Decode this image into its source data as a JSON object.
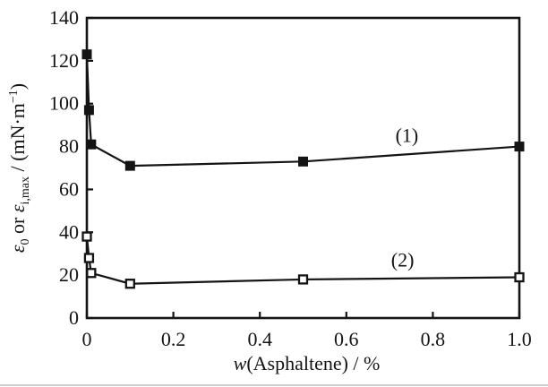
{
  "figure": {
    "background": "#ffffff",
    "ink": "#141414",
    "artifact_color": "#c6c6c6"
  },
  "chart_data": {
    "type": "line",
    "title": "",
    "xlabel": "w(Asphaltene) / %",
    "ylabel": "e0 or ei,max / (mN·m-1)",
    "xlabel_parts": [
      {
        "text": "w",
        "italic": true
      },
      {
        "text": "(Asphaltene) / %"
      }
    ],
    "ylabel_parts": [
      {
        "text": "ε",
        "italic": true
      },
      {
        "text": "0",
        "script": "sub"
      },
      {
        "text": " or "
      },
      {
        "text": "ε",
        "italic": true
      },
      {
        "text": "i,max",
        "script": "sub"
      },
      {
        "text": " / (mN·m"
      },
      {
        "text": "−1",
        "script": "sup"
      },
      {
        "text": ")"
      }
    ],
    "xlim": [
      0,
      1.0
    ],
    "ylim": [
      0,
      140
    ],
    "x_ticks": [
      0,
      0.2,
      0.4,
      0.6,
      0.8,
      1.0
    ],
    "x_tick_labels": [
      "0",
      "0.2",
      "0.4",
      "0.6",
      "0.8",
      "1.0"
    ],
    "y_ticks": [
      0,
      20,
      40,
      60,
      80,
      100,
      120,
      140
    ],
    "y_tick_labels": [
      "0",
      "20",
      "40",
      "60",
      "80",
      "100",
      "120",
      "140"
    ],
    "grid": false,
    "frame": true,
    "legend_position": "inline-labels",
    "series": [
      {
        "name": "series-1",
        "label": "(1)",
        "marker": "filled-square",
        "x": [
          0,
          0.005,
          0.01,
          0.1,
          0.5,
          1.0
        ],
        "y": [
          123,
          97,
          81,
          71,
          73,
          80
        ],
        "label_at": {
          "x": 0.74,
          "y": 85
        }
      },
      {
        "name": "series-2",
        "label": "(2)",
        "marker": "open-square",
        "x": [
          0,
          0.005,
          0.01,
          0.1,
          0.5,
          1.0
        ],
        "y": [
          38,
          28,
          21,
          16,
          18,
          19
        ],
        "label_at": {
          "x": 0.73,
          "y": 27
        }
      }
    ]
  }
}
